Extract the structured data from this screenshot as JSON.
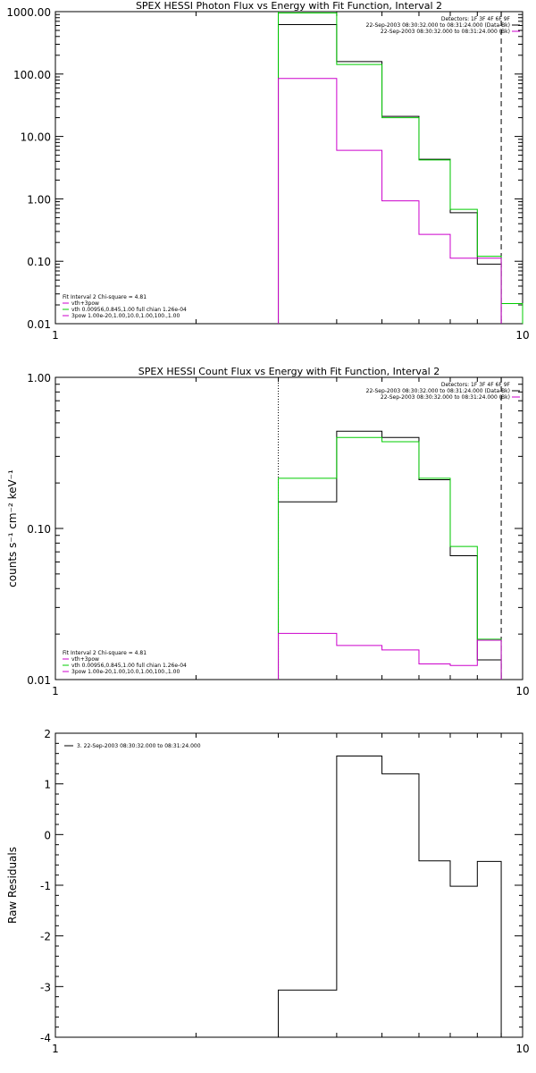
{
  "chart_data": [
    {
      "type": "line",
      "title": "SPEX HESSI Photon Flux vs Energy with Fit Function, Interval 2",
      "xlabel": "",
      "ylabel": "",
      "xscale": "log",
      "yscale": "log",
      "xlim": [
        1,
        10
      ],
      "ylim": [
        0.01,
        1000
      ],
      "xticks": [
        1,
        10
      ],
      "xtick_labels": [
        "1",
        "10"
      ],
      "yticks": [
        0.01,
        0.1,
        1,
        10,
        100,
        1000
      ],
      "ytick_labels": [
        "0.01",
        "0.10",
        "1.00",
        "10.00",
        "100.00",
        "1000.00"
      ],
      "vlines": [
        {
          "x": 3.0,
          "style": "solid",
          "color": "#00cc00"
        },
        {
          "x": 9.0,
          "style": "dashed",
          "color": "#000000"
        }
      ],
      "legend_top_right": {
        "header": "Detectors: 1F 3F 4F 6F 9F",
        "entries": [
          {
            "label": "22-Sep-2003 08:30:32.000 to 08:31:24.000 (Data-Bk)",
            "color": "#000000"
          },
          {
            "label": "22-Sep-2003 08:30:32.000 to 08:31:24.000 (Bk)",
            "color": "#cc00cc"
          }
        ]
      },
      "legend_bottom_left": {
        "header": "Fit Interval 2   Chi-square = 4.81",
        "entries": [
          {
            "label": "vth+3pow",
            "color": "#cc00cc"
          },
          {
            "label": "vth 0.00956,0.845,1.00  full chian 1.26e-04",
            "color": "#00cc00"
          },
          {
            "label": "3pow 1.00e-20,1.00,10.0,1.00,100.,1.00",
            "color": "#cc00cc"
          }
        ]
      },
      "series": [
        {
          "color": "#000000",
          "edges": [
            3,
            4,
            5,
            6,
            7,
            8,
            9
          ],
          "values": [
            620,
            158,
            21,
            4.3,
            0.6,
            0.09
          ]
        },
        {
          "color": "#00cc00",
          "edges": [
            3,
            4,
            5,
            6,
            7,
            8,
            9,
            10
          ],
          "values": [
            950,
            142,
            20,
            4.2,
            0.68,
            0.12,
            0.021
          ]
        },
        {
          "color": "#cc00cc",
          "edges": [
            3,
            4,
            5,
            6,
            7,
            8,
            9
          ],
          "values": [
            85,
            6.0,
            0.93,
            0.27,
            0.112,
            0.112
          ]
        }
      ]
    },
    {
      "type": "line",
      "title": "SPEX HESSI Count Flux vs Energy with Fit Function, Interval 2",
      "xlabel": "",
      "ylabel": "counts s⁻¹ cm⁻² keV⁻¹",
      "xscale": "log",
      "yscale": "log",
      "xlim": [
        1,
        10
      ],
      "ylim": [
        0.01,
        1.0
      ],
      "xticks": [
        1,
        10
      ],
      "xtick_labels": [
        "1",
        "10"
      ],
      "yticks": [
        0.01,
        0.1,
        1.0
      ],
      "ytick_labels": [
        "0.01",
        "0.10",
        "1.00"
      ],
      "vlines": [
        {
          "x": 3.0,
          "style": "dotted",
          "color": "#000000"
        },
        {
          "x": 9.0,
          "style": "dashed",
          "color": "#000000"
        }
      ],
      "legend_top_right": {
        "header": "Detectors: 1F 3F 4F 6F 9F",
        "entries": [
          {
            "label": "22-Sep-2003 08:30:32.000 to 08:31:24.000 (Data-Bk)",
            "color": "#000000"
          },
          {
            "label": "22-Sep-2003 08:30:32.000 to 08:31:24.000 (Bk)",
            "color": "#cc00cc"
          }
        ]
      },
      "legend_bottom_left": {
        "header": "Fit Interval 2   Chi-square = 4.81",
        "entries": [
          {
            "label": "vth+3pow",
            "color": "#cc00cc"
          },
          {
            "label": "vth 0.00956,0.845,1.00  full chian 1.26e-04",
            "color": "#00cc00"
          },
          {
            "label": "3pow 1.00e-20,1.00,10.0,1.00,100.,1.00",
            "color": "#cc00cc"
          }
        ]
      },
      "series": [
        {
          "color": "#000000",
          "edges": [
            3,
            4,
            5,
            6,
            7,
            8,
            9
          ],
          "values": [
            0.15,
            0.44,
            0.4,
            0.21,
            0.066,
            0.0135
          ]
        },
        {
          "color": "#00cc00",
          "edges": [
            3,
            4,
            5,
            6,
            7,
            8,
            9
          ],
          "values": [
            0.215,
            0.4,
            0.375,
            0.215,
            0.076,
            0.0185
          ]
        },
        {
          "color": "#cc00cc",
          "edges": [
            3,
            4,
            5,
            6,
            7,
            8,
            9
          ],
          "values": [
            0.0202,
            0.0168,
            0.0157,
            0.0127,
            0.0124,
            0.0182
          ]
        }
      ]
    },
    {
      "type": "line",
      "title": "",
      "xlabel": "",
      "ylabel": "Raw Residuals",
      "xscale": "log",
      "yscale": "linear",
      "xlim": [
        1,
        10
      ],
      "ylim": [
        -4,
        2
      ],
      "xticks": [
        1,
        10
      ],
      "xtick_labels": [
        "1",
        "10"
      ],
      "yticks": [
        -4,
        -3,
        -2,
        -1,
        0,
        1,
        2
      ],
      "ytick_labels": [
        "-4",
        "-3",
        "-2",
        "-1",
        "0",
        "1",
        "2"
      ],
      "legend_top_left": {
        "entries": [
          {
            "label": "3. 22-Sep-2003 08:30:32.000 to 08:31:24.000",
            "color": "#000000"
          }
        ]
      },
      "series": [
        {
          "color": "#000000",
          "edges": [
            3,
            4,
            5,
            6,
            7,
            8,
            9
          ],
          "values": [
            -3.07,
            1.55,
            1.2,
            -0.52,
            -1.02,
            -0.53
          ]
        }
      ]
    }
  ]
}
